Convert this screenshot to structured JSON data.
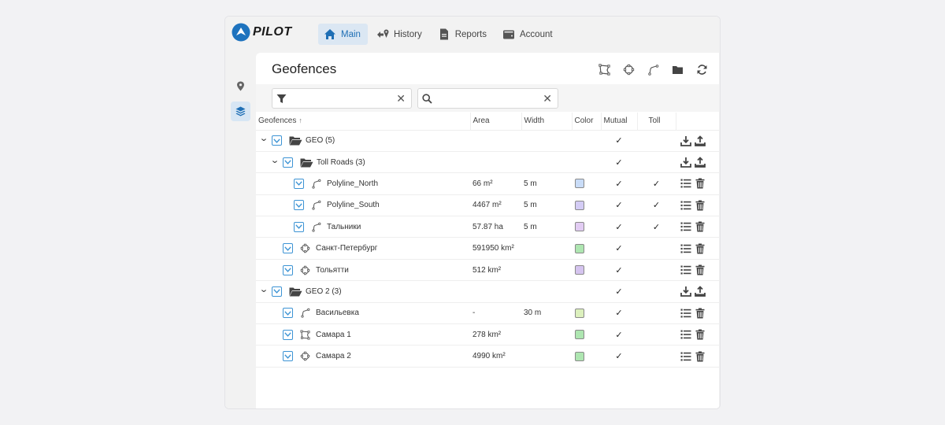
{
  "app": {
    "logo_text": "PILOT"
  },
  "nav": [
    {
      "label": "Main",
      "icon": "home-icon",
      "active": true
    },
    {
      "label": "History",
      "icon": "history-route-icon",
      "active": false
    },
    {
      "label": "Reports",
      "icon": "report-document-icon",
      "active": false
    },
    {
      "label": "Account",
      "icon": "wallet-icon",
      "active": false
    }
  ],
  "sidebar": [
    {
      "icon": "map-pin-icon",
      "active": false
    },
    {
      "icon": "layers-icon",
      "active": true
    }
  ],
  "panel": {
    "title": "Geofences",
    "tools": [
      "polygon-icon",
      "circle-geofence-icon",
      "polyline-icon",
      "folder-icon",
      "refresh-icon"
    ]
  },
  "filters": {
    "filter_value": "",
    "search_value": "",
    "clear_symbol": "✕"
  },
  "table": {
    "columns": [
      "Geofences",
      "Area",
      "Width",
      "Color",
      "Mutual",
      "Toll"
    ],
    "sort_indicator": "↑",
    "rows": [
      {
        "level": 0,
        "type": "group",
        "name": "GEO (5)",
        "area": "",
        "width": "",
        "color": "",
        "mutual": "✓",
        "toll": ""
      },
      {
        "level": 1,
        "type": "group",
        "name": "Toll Roads (3)",
        "area": "",
        "width": "",
        "color": "",
        "mutual": "✓",
        "toll": ""
      },
      {
        "level": 2,
        "type": "polyline",
        "name": "Polyline_North",
        "area": "66 m²",
        "width": "5 m",
        "color": "#c9dcf7",
        "mutual": "✓",
        "toll": "✓"
      },
      {
        "level": 2,
        "type": "polyline",
        "name": "Polyline_South",
        "area": "4467 m²",
        "width": "5 m",
        "color": "#d4ccf5",
        "mutual": "✓",
        "toll": "✓"
      },
      {
        "level": 2,
        "type": "polyline",
        "name": "Тальники",
        "area": "57.87 ha",
        "width": "5 m",
        "color": "#e2ccf3",
        "mutual": "✓",
        "toll": "✓"
      },
      {
        "level": 1,
        "type": "circle",
        "name": "Санкт-Петербург",
        "area": "591950 km²",
        "width": "",
        "color": "#aee6b1",
        "mutual": "✓",
        "toll": ""
      },
      {
        "level": 1,
        "type": "circle",
        "name": "Тольятти",
        "area": "512 km²",
        "width": "",
        "color": "#d5c4ef",
        "mutual": "✓",
        "toll": ""
      },
      {
        "level": 0,
        "type": "group",
        "name": "GEO 2 (3)",
        "area": "",
        "width": "",
        "color": "",
        "mutual": "✓",
        "toll": ""
      },
      {
        "level": 1,
        "type": "polyline",
        "name": "Васильевка",
        "area": "-",
        "width": "30 m",
        "color": "#dcf0bd",
        "mutual": "✓",
        "toll": ""
      },
      {
        "level": 1,
        "type": "polygon",
        "name": "Самара 1",
        "area": "278 km²",
        "width": "",
        "color": "#aee6b1",
        "mutual": "✓",
        "toll": ""
      },
      {
        "level": 1,
        "type": "circle",
        "name": "Самара 2",
        "area": "4990 km²",
        "width": "",
        "color": "#aee6b1",
        "mutual": "✓",
        "toll": ""
      }
    ]
  },
  "colors": {
    "accent": "#1f6fb5",
    "checkbox_border": "#3c93d4",
    "active_nav_bg": "#dbe7f3"
  }
}
